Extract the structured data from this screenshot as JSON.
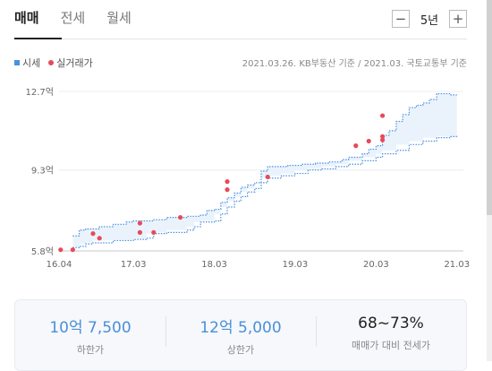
{
  "tabs": [
    "매매",
    "전세",
    "월세"
  ],
  "period": {
    "minus": "−",
    "label": "5년",
    "plus": "+"
  },
  "legend": {
    "series": "시세",
    "deals": "실거래가"
  },
  "source": "2021.03.26. KB부동산 기준 / 2021.03. 국토교통부 기준",
  "chart_data": {
    "type": "line",
    "x_ticks": [
      "16.04",
      "17.03",
      "18.03",
      "19.03",
      "20.03",
      "21.03"
    ],
    "y_ticks": [
      "5.8억",
      "9.3억",
      "12.7억"
    ],
    "ylim": [
      5.8,
      12.7
    ],
    "xlim": [
      2016.25,
      2021.25
    ],
    "x_tick_values": [
      2016.25,
      2017.17,
      2018.17,
      2019.17,
      2020.17,
      2021.17
    ],
    "series": [
      {
        "role": "upper",
        "color": "#4a90e2",
        "points": [
          [
            2016.42,
            6.45
          ],
          [
            2016.5,
            6.7
          ],
          [
            2016.58,
            6.75
          ],
          [
            2016.75,
            6.85
          ],
          [
            2016.92,
            6.95
          ],
          [
            2017.0,
            6.95
          ],
          [
            2017.08,
            7.05
          ],
          [
            2017.17,
            7.1
          ],
          [
            2017.42,
            7.15
          ],
          [
            2017.58,
            7.25
          ],
          [
            2017.83,
            7.3
          ],
          [
            2018.0,
            7.35
          ],
          [
            2018.08,
            7.55
          ],
          [
            2018.17,
            7.6
          ],
          [
            2018.25,
            7.9
          ],
          [
            2018.33,
            8.1
          ],
          [
            2018.42,
            8.3
          ],
          [
            2018.5,
            8.55
          ],
          [
            2018.58,
            8.65
          ],
          [
            2018.67,
            8.75
          ],
          [
            2018.75,
            9.25
          ],
          [
            2018.83,
            9.45
          ],
          [
            2019.08,
            9.5
          ],
          [
            2019.25,
            9.55
          ],
          [
            2019.42,
            9.6
          ],
          [
            2019.58,
            9.65
          ],
          [
            2019.75,
            9.75
          ],
          [
            2019.83,
            9.85
          ],
          [
            2020.0,
            10.0
          ],
          [
            2020.08,
            10.2
          ],
          [
            2020.17,
            10.35
          ],
          [
            2020.25,
            10.8
          ],
          [
            2020.33,
            11.0
          ],
          [
            2020.42,
            11.4
          ],
          [
            2020.5,
            11.7
          ],
          [
            2020.58,
            12.0
          ],
          [
            2020.67,
            12.1
          ],
          [
            2020.75,
            12.2
          ],
          [
            2020.83,
            12.35
          ],
          [
            2020.92,
            12.6
          ],
          [
            2021.08,
            12.55
          ],
          [
            2021.17,
            12.55
          ]
        ]
      },
      {
        "role": "lower",
        "color": "#4a90e2",
        "points": [
          [
            2016.42,
            5.95
          ],
          [
            2016.5,
            6.0
          ],
          [
            2016.58,
            6.1
          ],
          [
            2016.67,
            6.15
          ],
          [
            2016.92,
            6.25
          ],
          [
            2017.17,
            6.3
          ],
          [
            2017.33,
            6.35
          ],
          [
            2017.42,
            6.55
          ],
          [
            2017.58,
            6.6
          ],
          [
            2017.83,
            6.7
          ],
          [
            2017.92,
            6.85
          ],
          [
            2018.0,
            7.05
          ],
          [
            2018.17,
            7.1
          ],
          [
            2018.25,
            7.4
          ],
          [
            2018.33,
            7.7
          ],
          [
            2018.42,
            7.95
          ],
          [
            2018.5,
            8.15
          ],
          [
            2018.58,
            8.35
          ],
          [
            2018.67,
            8.5
          ],
          [
            2018.75,
            8.75
          ],
          [
            2018.83,
            8.95
          ],
          [
            2019.0,
            9.05
          ],
          [
            2019.17,
            9.15
          ],
          [
            2019.33,
            9.3
          ],
          [
            2019.5,
            9.35
          ],
          [
            2019.67,
            9.45
          ],
          [
            2019.83,
            9.55
          ],
          [
            2020.0,
            9.7
          ],
          [
            2020.17,
            9.85
          ],
          [
            2020.25,
            10.0
          ],
          [
            2020.42,
            10.15
          ],
          [
            2020.58,
            10.4
          ],
          [
            2020.75,
            10.55
          ],
          [
            2020.92,
            10.7
          ],
          [
            2021.08,
            10.75
          ],
          [
            2021.17,
            10.7
          ]
        ]
      }
    ],
    "deals": [
      [
        2016.27,
        5.85
      ],
      [
        2016.42,
        5.85
      ],
      [
        2016.67,
        6.55
      ],
      [
        2016.75,
        6.35
      ],
      [
        2017.25,
        6.6
      ],
      [
        2017.25,
        7.0
      ],
      [
        2017.42,
        6.6
      ],
      [
        2017.75,
        7.25
      ],
      [
        2018.33,
        8.45
      ],
      [
        2018.33,
        8.8
      ],
      [
        2018.83,
        9.0
      ],
      [
        2019.92,
        10.35
      ],
      [
        2020.08,
        10.55
      ],
      [
        2020.25,
        10.6
      ],
      [
        2020.25,
        10.75
      ],
      [
        2020.25,
        11.65
      ]
    ]
  },
  "summary": [
    {
      "value": "10억 7,500",
      "label": "하한가"
    },
    {
      "value": "12억 5,000",
      "label": "상한가"
    },
    {
      "value": "68~73%",
      "label": "매매가 대비 전세가"
    }
  ]
}
